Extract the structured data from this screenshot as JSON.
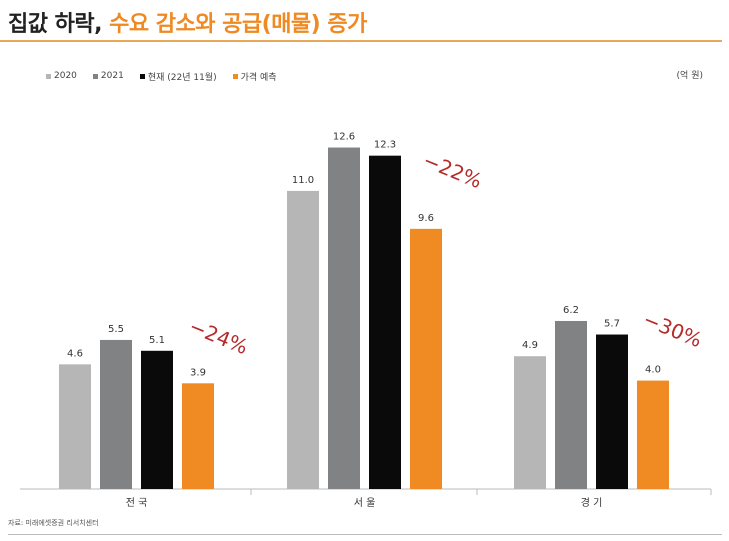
{
  "title": {
    "part1": "집값 하락, ",
    "part2": "수요 감소와 공급(매물) 증가"
  },
  "unit": "(억 원)",
  "source": "자료: 미래에셋증권 리서치센터",
  "colors": {
    "title_accent": "#ef8a23",
    "series": [
      "#b5b6b5",
      "#808283",
      "#0a0a0a",
      "#f08a22"
    ],
    "change_label": "#b52a2a"
  },
  "chart_data": {
    "type": "bar",
    "categories": [
      "전 국",
      "서 울",
      "경 기"
    ],
    "series": [
      {
        "name": "2020",
        "values": [
          4.6,
          11.0,
          4.9
        ]
      },
      {
        "name": "2021",
        "values": [
          5.5,
          12.6,
          6.2
        ]
      },
      {
        "name": "현재 (22년 11월)",
        "values": [
          5.1,
          12.3,
          5.7
        ]
      },
      {
        "name": "가격 예측",
        "values": [
          3.9,
          9.6,
          4.0
        ]
      }
    ],
    "value_labels": [
      [
        "4.6",
        "11.0",
        "4.9"
      ],
      [
        "5.5",
        "12.6",
        "6.2"
      ],
      [
        "5.1",
        "12.3",
        "5.7"
      ],
      [
        "3.9",
        "9.6",
        "4.0"
      ]
    ],
    "change_labels": [
      "−24%",
      "−22%",
      "−30%"
    ],
    "ylim": [
      0,
      14
    ],
    "legend_position": "top-left",
    "grid": false
  }
}
